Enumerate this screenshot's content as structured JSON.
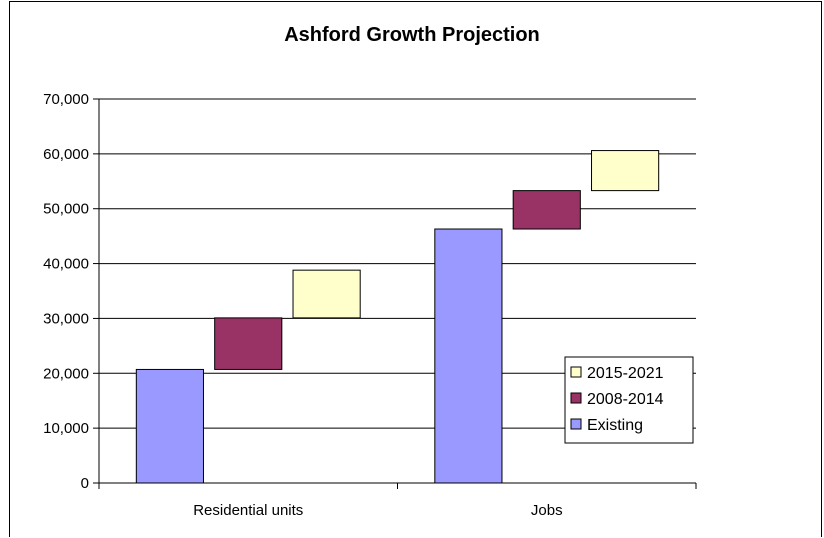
{
  "chart_data": {
    "type": "bar",
    "title": "Ashford Growth Projection",
    "categories": [
      "Residential units",
      "Jobs"
    ],
    "stacked_floating": true,
    "series": [
      {
        "name": "Existing",
        "color": "#9999ff",
        "base": [
          0,
          0
        ],
        "values": [
          20700,
          46300
        ]
      },
      {
        "name": "2008-2014",
        "color": "#993366",
        "base": [
          20700,
          46300
        ],
        "values": [
          9400,
          7000
        ]
      },
      {
        "name": "2015-2021",
        "color": "#ffffcc",
        "base": [
          30100,
          53300
        ],
        "values": [
          8700,
          7300
        ]
      }
    ],
    "ylim": [
      0,
      70000
    ],
    "yticks": [
      "0",
      "10,000",
      "20,000",
      "30,000",
      "40,000",
      "50,000",
      "60,000",
      "70,000"
    ],
    "grid": true,
    "legend": {
      "placement": "right",
      "items": [
        {
          "label": "2015-2021",
          "color": "#ffffcc"
        },
        {
          "label": "2008-2014",
          "color": "#993366"
        },
        {
          "label": "Existing",
          "color": "#9999ff"
        }
      ]
    }
  }
}
